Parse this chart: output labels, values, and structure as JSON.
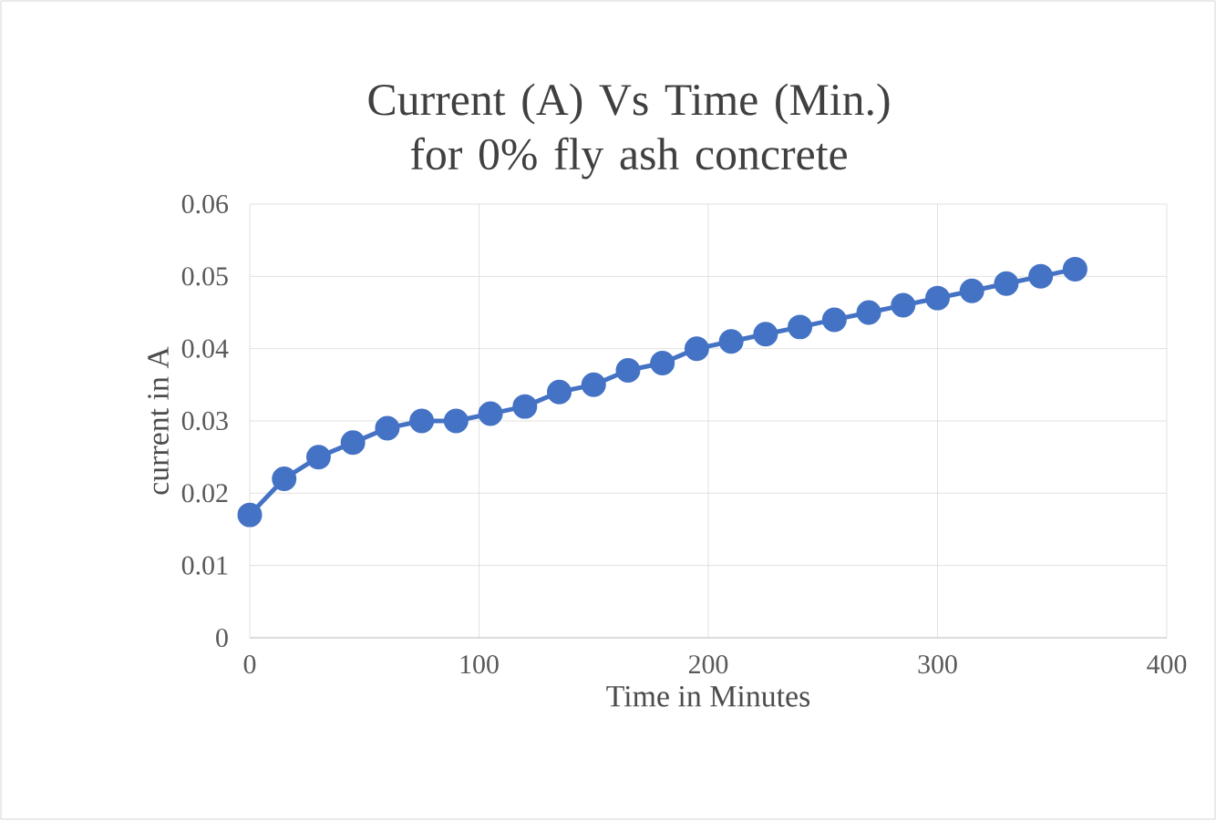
{
  "chart_data": {
    "type": "line",
    "title": "Current (A) Vs Time (Min.) for 0% fly ash concrete",
    "xlabel": "Time in Minutes",
    "ylabel": "current in A",
    "x": [
      0,
      15,
      30,
      45,
      60,
      75,
      90,
      105,
      120,
      135,
      150,
      165,
      180,
      195,
      210,
      225,
      240,
      255,
      270,
      285,
      300,
      315,
      330,
      345,
      360
    ],
    "values": [
      0.017,
      0.022,
      0.025,
      0.027,
      0.029,
      0.03,
      0.03,
      0.031,
      0.032,
      0.034,
      0.035,
      0.037,
      0.038,
      0.04,
      0.041,
      0.042,
      0.043,
      0.044,
      0.045,
      0.046,
      0.047,
      0.048,
      0.049,
      0.05,
      0.051
    ],
    "color": "#4472c4",
    "marker": "circle",
    "line_style": "solid",
    "xlim": [
      0,
      400
    ],
    "xticks": [
      0,
      100,
      200,
      300,
      400
    ],
    "ylim": [
      0,
      0.06
    ],
    "yticks": [
      0,
      0.01,
      0.02,
      0.03,
      0.04,
      0.05,
      0.06
    ],
    "grid": true
  }
}
